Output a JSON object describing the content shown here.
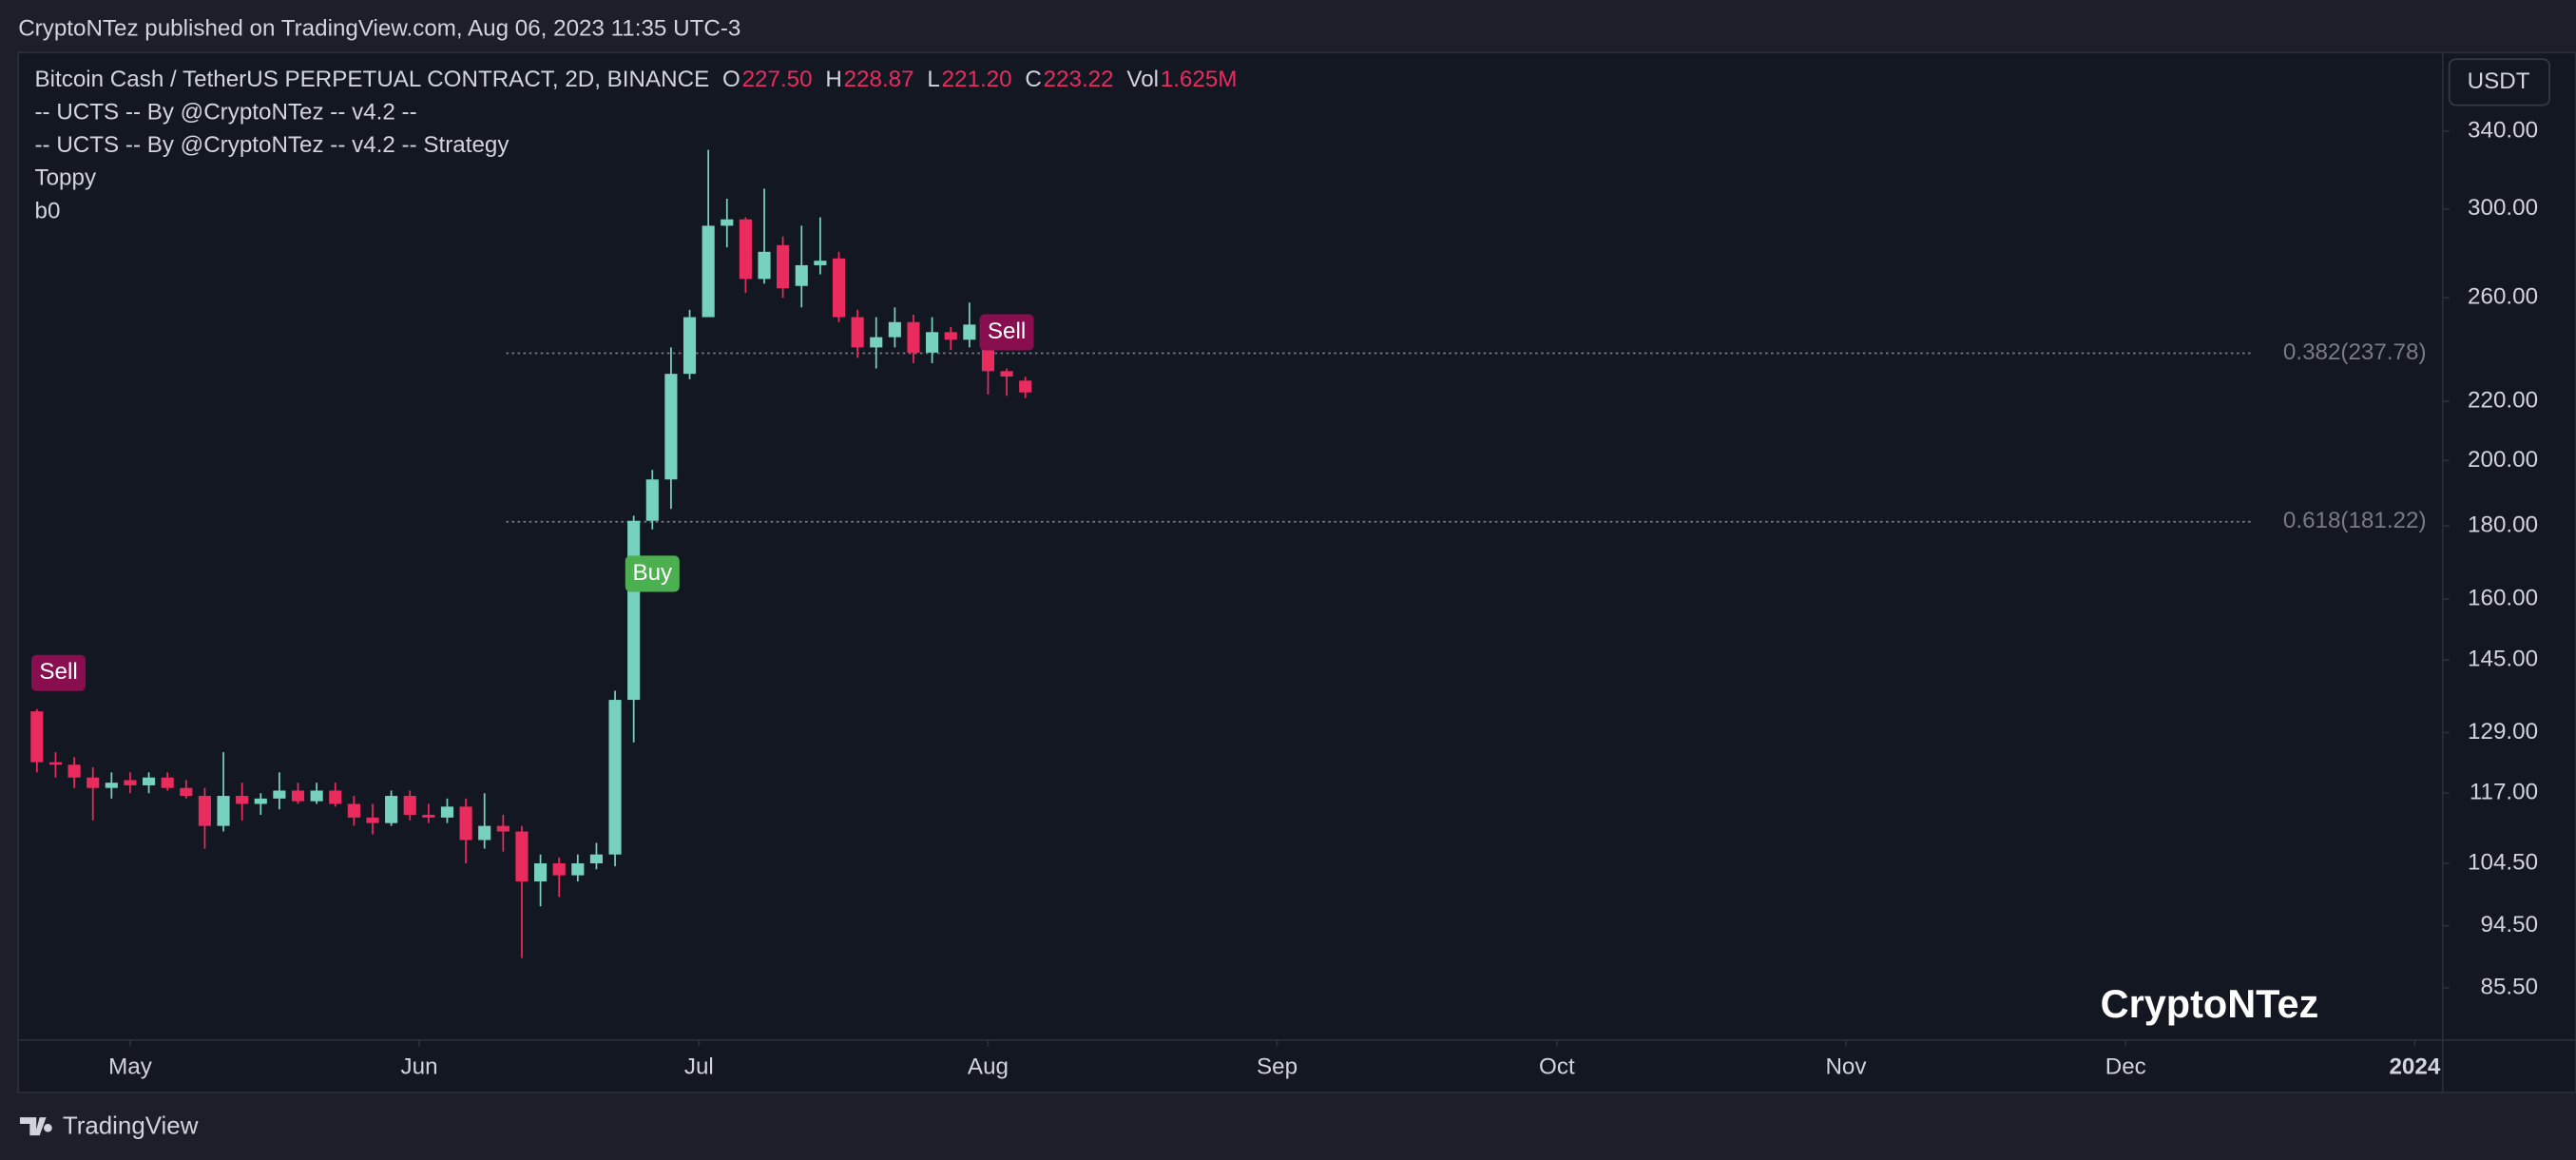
{
  "header": {
    "text": "CryptoNTez published on TradingView.com, Aug 06, 2023 11:35 UTC-3"
  },
  "footer": {
    "brand": "TradingView"
  },
  "chart_data": {
    "type": "candlestick",
    "legend": {
      "symbol": "Bitcoin Cash / TetherUS PERPETUAL CONTRACT, 2D, BINANCE",
      "fields": [
        {
          "key": "O",
          "text": "227.50"
        },
        {
          "key": "H",
          "text": "228.87"
        },
        {
          "key": "L",
          "text": "221.20"
        },
        {
          "key": "C",
          "text": "223.22"
        },
        {
          "key": "Vol",
          "text": "1.625M"
        }
      ]
    },
    "indicators": [
      "-- UCTS -- By @CryptoNTez -- v4.2 --",
      "-- UCTS -- By @CryptoNTez -- v4.2 -- Strategy",
      "Toppy",
      "b0"
    ],
    "currency": "USDT",
    "watermark": "CryptoNTez",
    "up_color": "#76d2bf",
    "down_color": "#ea2b5d",
    "log_scale": true,
    "x": [
      "2023-04-21",
      "2023-04-23",
      "2023-04-25",
      "2023-04-27",
      "2023-04-29",
      "2023-05-01",
      "2023-05-03",
      "2023-05-05",
      "2023-05-07",
      "2023-05-09",
      "2023-05-11",
      "2023-05-13",
      "2023-05-15",
      "2023-05-17",
      "2023-05-19",
      "2023-05-21",
      "2023-05-23",
      "2023-05-25",
      "2023-05-27",
      "2023-05-29",
      "2023-05-31",
      "2023-06-02",
      "2023-06-04",
      "2023-06-06",
      "2023-06-08",
      "2023-06-10",
      "2023-06-12",
      "2023-06-14",
      "2023-06-16",
      "2023-06-18",
      "2023-06-20",
      "2023-06-22",
      "2023-06-24",
      "2023-06-26",
      "2023-06-28",
      "2023-06-30",
      "2023-07-02",
      "2023-07-04",
      "2023-07-06",
      "2023-07-08",
      "2023-07-10",
      "2023-07-12",
      "2023-07-14",
      "2023-07-16",
      "2023-07-18",
      "2023-07-20",
      "2023-07-22",
      "2023-07-24",
      "2023-07-26",
      "2023-07-28",
      "2023-07-30",
      "2023-08-01",
      "2023-08-03",
      "2023-08-05"
    ],
    "open": [
      133.5,
      123,
      122.5,
      120,
      118,
      119.5,
      118.5,
      120,
      118,
      116.5,
      111,
      116.5,
      115,
      116,
      117.5,
      115.5,
      117.5,
      115,
      112.5,
      111.5,
      116.5,
      113,
      112.5,
      114.5,
      108.5,
      111,
      110,
      101.5,
      104.5,
      102.5,
      104.5,
      106,
      136,
      181.5,
      194,
      230,
      252,
      292,
      295,
      268,
      283,
      265,
      274,
      277,
      252,
      240,
      244,
      250,
      238,
      246,
      243,
      249,
      231,
      227.5
    ],
    "high": [
      134,
      125,
      124,
      122,
      121,
      121,
      121,
      121,
      119.5,
      118,
      125,
      119,
      117,
      121,
      119,
      119,
      119,
      116.5,
      115,
      117.5,
      117.5,
      115,
      116,
      116,
      117,
      113,
      111,
      106,
      105.5,
      106,
      108,
      138,
      183,
      197,
      240,
      255,
      330,
      305,
      296,
      310,
      287,
      292,
      296,
      280,
      255,
      252,
      256,
      253,
      252,
      248,
      258,
      250,
      232,
      228.87
    ],
    "low": [
      121,
      120,
      118,
      112,
      116,
      117,
      117,
      117.5,
      116,
      107,
      110,
      112,
      113,
      114,
      115,
      115,
      114.5,
      111,
      109.5,
      111,
      112,
      111.5,
      111.5,
      104.5,
      107,
      106.5,
      89.7,
      97.5,
      99,
      101.5,
      103.5,
      104,
      127,
      179,
      185,
      228,
      252,
      282,
      262,
      266,
      260,
      256,
      270,
      250,
      236,
      232,
      240,
      234,
      234,
      239,
      240,
      222.5,
      222,
      221.2
    ],
    "close": [
      123,
      122.5,
      120,
      118,
      119,
      118.5,
      120,
      118,
      116.5,
      111,
      116.5,
      115,
      116,
      117.5,
      115.5,
      117.5,
      115,
      112.5,
      111.5,
      116.5,
      113,
      112.5,
      114.5,
      108.5,
      111,
      110,
      101.5,
      104.5,
      102.5,
      104.5,
      106,
      136,
      181.5,
      194,
      230,
      252,
      292,
      295,
      268,
      280,
      264,
      274,
      276,
      252,
      240,
      244,
      250,
      238,
      246,
      243,
      249,
      231,
      229,
      223.22
    ],
    "signals": [
      {
        "label": "Sell",
        "date": "2023-04-21"
      },
      {
        "label": "Buy",
        "date": "2023-06-26"
      },
      {
        "label": "Sell",
        "date": "2023-08-03"
      }
    ],
    "fib_levels": [
      {
        "label": "0.382(237.78)",
        "value": 237.78
      },
      {
        "label": "0.618(181.22)",
        "value": 181.22
      }
    ],
    "xlim": [
      "2023-04-19",
      "2024-01-04"
    ],
    "xticks": [
      {
        "value": "2023-05-01",
        "label": "May"
      },
      {
        "value": "2023-06-01",
        "label": "Jun"
      },
      {
        "value": "2023-07-01",
        "label": "Jul"
      },
      {
        "value": "2023-08-01",
        "label": "Aug"
      },
      {
        "value": "2023-09-01",
        "label": "Sep"
      },
      {
        "value": "2023-10-01",
        "label": "Oct"
      },
      {
        "value": "2023-11-01",
        "label": "Nov"
      },
      {
        "value": "2023-12-01",
        "label": "Dec"
      },
      {
        "value": "2024-01-01",
        "label": "2024"
      }
    ],
    "ylim": [
      78.6,
      386
    ],
    "yticks": [
      {
        "value": 340,
        "label": "340.00"
      },
      {
        "value": 300,
        "label": "300.00"
      },
      {
        "value": 260,
        "label": "260.00"
      },
      {
        "value": 220,
        "label": "220.00"
      },
      {
        "value": 200,
        "label": "200.00"
      },
      {
        "value": 180,
        "label": "180.00"
      },
      {
        "value": 160,
        "label": "160.00"
      },
      {
        "value": 145,
        "label": "145.00"
      },
      {
        "value": 129,
        "label": "129.00"
      },
      {
        "value": 117,
        "label": "117.00"
      },
      {
        "value": 104.5,
        "label": "104.50"
      },
      {
        "value": 94.5,
        "label": "94.50"
      },
      {
        "value": 85.5,
        "label": "85.50"
      }
    ]
  }
}
